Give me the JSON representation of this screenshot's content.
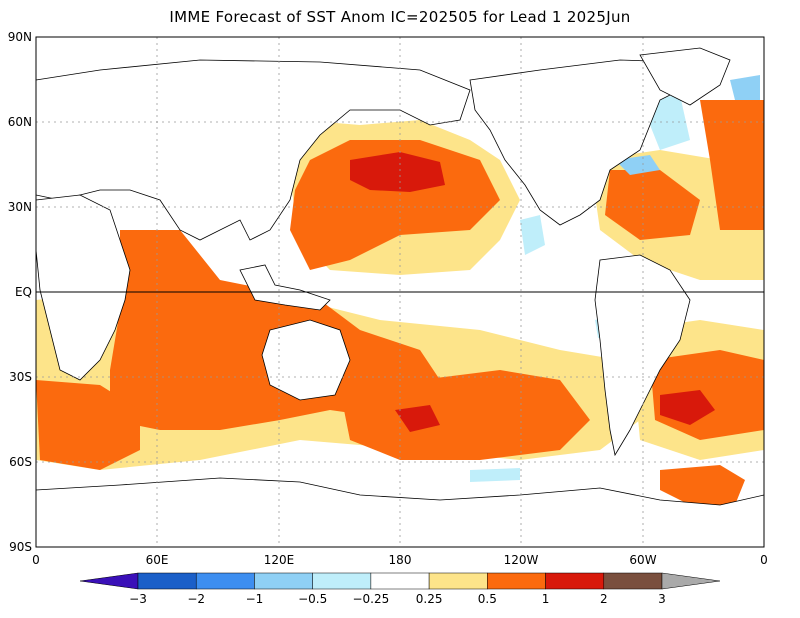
{
  "title": "IMME Forecast of SST Anom IC=202505 for Lead 1 2025Jun",
  "axes": {
    "lat_labels": [
      "90N",
      "60N",
      "30N",
      "EQ",
      "30S",
      "60S",
      "90S"
    ],
    "lon_labels": [
      "0",
      "60E",
      "120E",
      "180",
      "120W",
      "60W",
      "0"
    ]
  },
  "colorbar": {
    "labels": [
      "-3",
      "-2",
      "-1",
      "-0.5",
      "-0.25",
      "0.25",
      "0.5",
      "1",
      "2",
      "3"
    ],
    "colors": [
      "#3a10b8",
      "#1b5fc8",
      "#3d8ef0",
      "#8fd0f5",
      "#bfeefa",
      "#ffffff",
      "#fde48a",
      "#fb6a0e",
      "#d8190b",
      "#7a4f3e",
      "#aaaaaa"
    ]
  },
  "colors": {
    "land": "#ffffff",
    "ocean_neutral": "#ffffff",
    "warm_light": "#fde48a",
    "warm": "#fb6a0e",
    "warm_strong": "#d8190b",
    "warm_extreme": "#7a4f3e",
    "cool_light": "#bfeefa",
    "cool": "#8fd0f5",
    "cool_mid": "#3d8ef0"
  }
}
